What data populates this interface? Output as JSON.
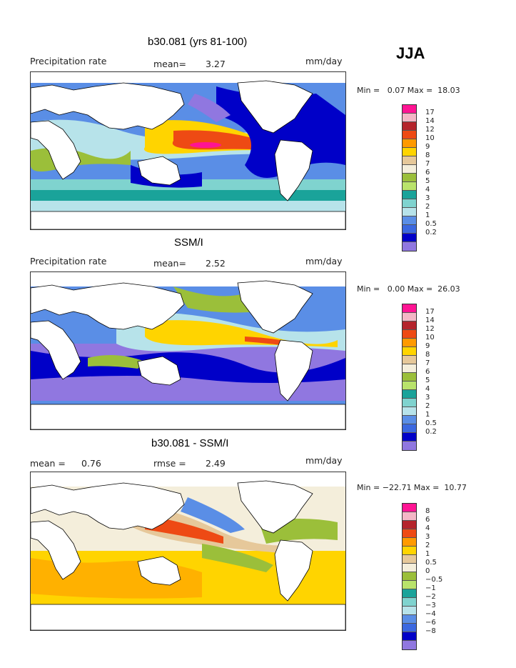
{
  "season": "JJA",
  "colors": {
    "rate": [
      "#ff1493",
      "#f4b6c6",
      "#b4242c",
      "#ee4a14",
      "#ff9a00",
      "#ffd400",
      "#e6c89a",
      "#f4eedb",
      "#9bbf3a",
      "#b9e36b",
      "#1aa39a",
      "#7fd3cf",
      "#b7e3ea",
      "#5a8ee6",
      "#3b68e0",
      "#0000c8",
      "#9077e0"
    ],
    "diff": [
      "#ff1493",
      "#f4b6c6",
      "#b4242c",
      "#ee4a14",
      "#ff9a00",
      "#ffd400",
      "#e6c89a",
      "#f4eedb",
      "#9bbf3a",
      "#b9e36b",
      "#1aa39a",
      "#7fd3cf",
      "#b7e3ea",
      "#5a8ee6",
      "#3b68e0",
      "#0000c8",
      "#9077e0"
    ]
  },
  "panels": [
    {
      "title": "b30.081 (yrs 81-100)",
      "left_label": "Precipitation rate",
      "mid_label": "mean=",
      "mid_value": "3.27",
      "units": "mm/day",
      "minmax": "Min =   0.07 Max =  18.03",
      "ticks": [
        "17",
        "14",
        "12",
        "10",
        "9",
        "8",
        "7",
        "6",
        "5",
        "4",
        "3",
        "2",
        "1",
        "0.5",
        "0.2"
      ]
    },
    {
      "title": "SSM/I",
      "left_label": "Precipitation rate",
      "mid_label": "mean=",
      "mid_value": "2.52",
      "units": "mm/day",
      "minmax": "Min =   0.00 Max =  26.03",
      "ticks": [
        "17",
        "14",
        "12",
        "10",
        "9",
        "8",
        "7",
        "6",
        "5",
        "4",
        "3",
        "2",
        "1",
        "0.5",
        "0.2"
      ]
    },
    {
      "title": "b30.081 - SSM/I",
      "left_label": "mean =",
      "left_value": "0.76",
      "mid_label": "rmse =",
      "mid_value": "2.49",
      "units": "mm/day",
      "minmax": "Min = −22.71 Max =  10.77",
      "ticks": [
        "8",
        "6",
        "4",
        "3",
        "2",
        "1",
        "0.5",
        "0",
        "−0.5",
        "−1",
        "−2",
        "−3",
        "−4",
        "−6",
        "−8"
      ]
    }
  ]
}
